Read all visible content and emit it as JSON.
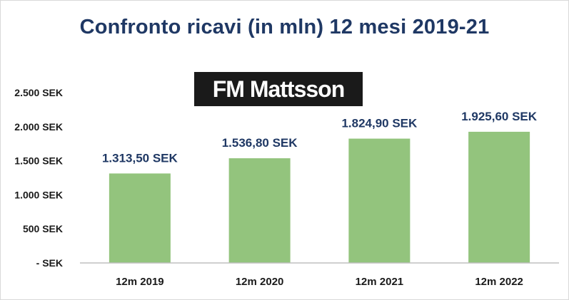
{
  "chart_data": {
    "type": "bar",
    "title": "Confronto ricavi (in mln) 12 mesi 2019-21",
    "categories": [
      "12m 2019",
      "12m 2020",
      "12m 2021",
      "12m 2022"
    ],
    "values": [
      1313.5,
      1536.8,
      1824.9,
      1925.6
    ],
    "value_labels": [
      "1.313,50 SEK",
      "1.536,80 SEK",
      "1.824,90 SEK",
      "1.925,60 SEK"
    ],
    "y_ticks": [
      0,
      500,
      1000,
      1500,
      2000,
      2500
    ],
    "y_tick_labels": [
      "- SEK",
      "500 SEK",
      "1.000 SEK",
      "1.500 SEK",
      "2.000 SEK",
      "2.500 SEK"
    ],
    "ylim": [
      0,
      2500
    ],
    "grid": false,
    "bar_color": "#93c47d"
  },
  "logo": {
    "text": "FM Mattsson"
  }
}
